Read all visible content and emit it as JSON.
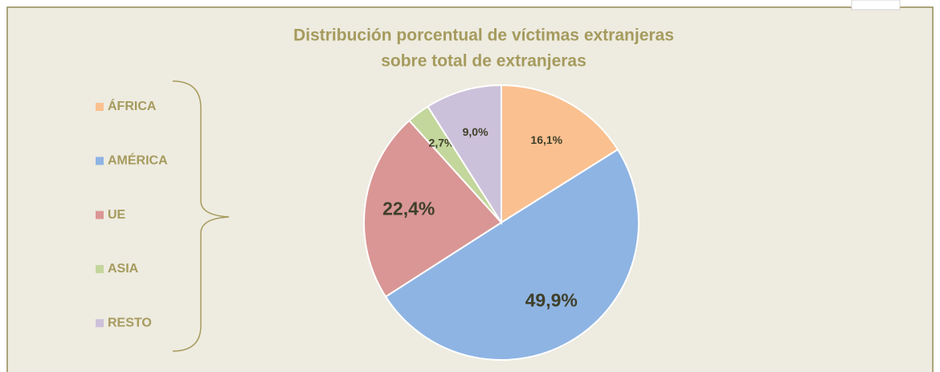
{
  "chart_data": {
    "type": "pie",
    "title": "Distribución porcentual de víctimas extranjeras",
    "subtitle": "sobre total de extranjeras",
    "categories": [
      "ÁFRICA",
      "AMÉRICA",
      "UE",
      "ASIA",
      "RESTO"
    ],
    "values": [
      16.1,
      49.9,
      22.4,
      2.7,
      9.0
    ],
    "value_labels": [
      "16,1%",
      "49,9%",
      "22,4%",
      "2,7%",
      "9,0%"
    ],
    "colors": [
      "#fac090",
      "#8eb4e3",
      "#d99694",
      "#c3d69b",
      "#ccc1da"
    ]
  }
}
